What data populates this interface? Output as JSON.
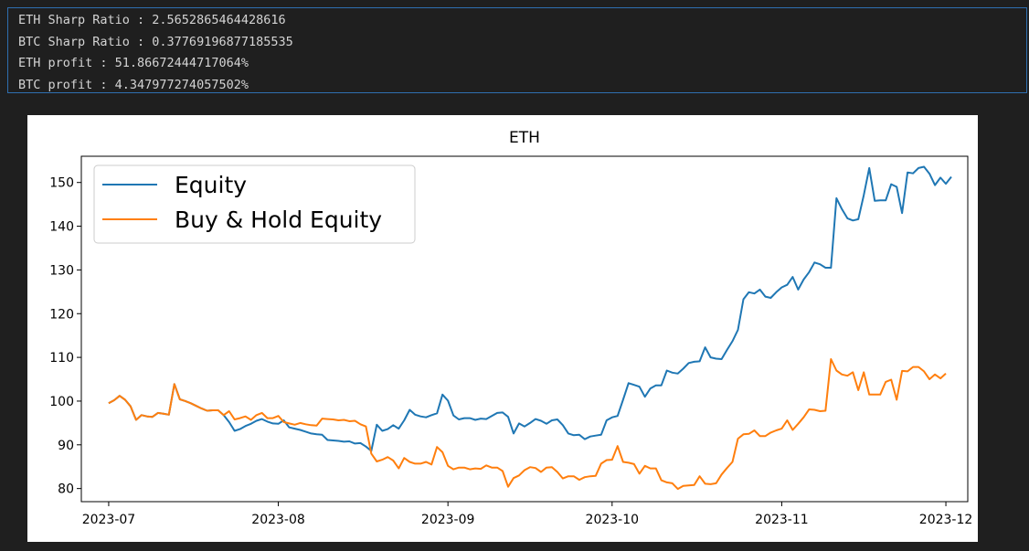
{
  "output_lines": [
    "ETH Sharp Ratio : 2.5652865464428616",
    "BTC Sharp Ratio : 0.37769196877185535",
    "ETH profit : 51.86672444717064%",
    "BTC profit : 4.347977274057502%"
  ],
  "colors": {
    "equity": "#1f77b4",
    "buy_hold": "#ff7f0e",
    "panel_border": "#2f6fb0",
    "background": "#1f1f1f"
  },
  "chart_data": {
    "type": "line",
    "title": "ETH",
    "xlabel": "",
    "ylabel": "",
    "x_start": "2023-07-01",
    "x_step_days": 1,
    "xlim": [
      "2023-06-26",
      "2023-12-05"
    ],
    "ylim": [
      77,
      156
    ],
    "xticks": [
      "2023-07",
      "2023-08",
      "2023-09",
      "2023-10",
      "2023-11",
      "2023-12"
    ],
    "xtick_dates": [
      "2023-07-01",
      "2023-08-01",
      "2023-09-01",
      "2023-10-01",
      "2023-11-01",
      "2023-12-01"
    ],
    "yticks": [
      80,
      90,
      100,
      110,
      120,
      130,
      140,
      150
    ],
    "grid": false,
    "legend_position": "top-left",
    "series": [
      {
        "name": "Equity",
        "color": "#1f77b4",
        "values": [
          99.5,
          100.2,
          101.2,
          100.3,
          98.8,
          95.7,
          96.8,
          96.5,
          96.4,
          97.3,
          97.1,
          96.9,
          103.9,
          100.4,
          100.0,
          99.5,
          98.9,
          98.3,
          97.8,
          97.9,
          97.9,
          96.8,
          95.2,
          93.2,
          93.6,
          94.3,
          94.8,
          95.5,
          95.9,
          95.3,
          94.9,
          94.8,
          95.6,
          94.0,
          93.7,
          93.4,
          93.0,
          92.6,
          92.4,
          92.3,
          91.1,
          91.0,
          90.9,
          90.7,
          90.8,
          90.3,
          90.4,
          89.6,
          88.6,
          94.6,
          93.2,
          93.6,
          94.5,
          93.7,
          95.6,
          98.0,
          96.9,
          96.5,
          96.3,
          96.8,
          97.2,
          101.5,
          100.1,
          96.7,
          95.8,
          96.1,
          96.1,
          95.7,
          96.0,
          95.9,
          96.6,
          97.3,
          97.4,
          96.4,
          92.6,
          94.9,
          94.2,
          95.0,
          95.9,
          95.5,
          94.8,
          95.6,
          95.8,
          94.5,
          92.6,
          92.2,
          92.3,
          91.3,
          91.9,
          92.1,
          92.3,
          95.6,
          96.3,
          96.6,
          100.3,
          104.1,
          103.7,
          103.3,
          101.0,
          102.9,
          103.6,
          103.6,
          107.0,
          106.5,
          106.3,
          107.4,
          108.7,
          109.0,
          109.1,
          112.3,
          110.0,
          109.7,
          109.6,
          111.7,
          113.7,
          116.3,
          123.3,
          124.9,
          124.6,
          125.5,
          123.9,
          123.6,
          124.9,
          126.0,
          126.6,
          128.4,
          125.5,
          127.8,
          129.5,
          131.7,
          131.3,
          130.5,
          130.5,
          146.4,
          143.9,
          141.8,
          141.3,
          141.6,
          147.1,
          153.3,
          145.8,
          145.9,
          145.9,
          149.6,
          149.0,
          143.0,
          152.3,
          152.1,
          153.3,
          153.6,
          152.0,
          149.4,
          151.1,
          149.7,
          151.3
        ]
      },
      {
        "name": "Buy & Hold Equity",
        "color": "#ff7f0e",
        "values": [
          99.5,
          100.2,
          101.2,
          100.3,
          98.8,
          95.7,
          96.8,
          96.5,
          96.4,
          97.3,
          97.1,
          96.9,
          103.9,
          100.4,
          100.0,
          99.5,
          98.9,
          98.3,
          97.8,
          97.9,
          97.9,
          96.8,
          97.7,
          95.8,
          96.1,
          96.5,
          95.7,
          96.8,
          97.3,
          96.1,
          96.1,
          96.6,
          95.2,
          94.9,
          94.6,
          95.0,
          94.7,
          94.5,
          94.4,
          96.0,
          95.9,
          95.8,
          95.6,
          95.7,
          95.4,
          95.5,
          94.7,
          94.2,
          88.0,
          86.2,
          86.6,
          87.2,
          86.4,
          84.6,
          87.0,
          86.1,
          85.7,
          85.7,
          86.1,
          85.5,
          89.5,
          88.3,
          85.2,
          84.4,
          84.8,
          84.8,
          84.4,
          84.6,
          84.5,
          85.3,
          84.8,
          84.8,
          84.0,
          80.4,
          82.4,
          83.0,
          84.2,
          84.9,
          84.7,
          83.8,
          84.8,
          84.9,
          83.8,
          82.3,
          82.8,
          82.8,
          82.0,
          82.6,
          82.8,
          82.9,
          85.7,
          86.5,
          86.6,
          89.7,
          86.1,
          85.9,
          85.6,
          83.4,
          85.2,
          84.6,
          84.6,
          81.9,
          81.4,
          81.2,
          79.9,
          80.6,
          80.7,
          80.8,
          82.8,
          81.1,
          81.0,
          81.2,
          83.2,
          84.7,
          86.1,
          91.4,
          92.4,
          92.5,
          93.3,
          92.0,
          92.0,
          92.8,
          93.3,
          93.7,
          95.6,
          93.4,
          94.8,
          96.3,
          98.1,
          98.0,
          97.7,
          97.8,
          109.6,
          107.0,
          106.1,
          105.8,
          106.6,
          102.5,
          106.6,
          101.5,
          101.5,
          101.5,
          104.4,
          104.9,
          100.3,
          106.9,
          106.8,
          107.8,
          107.8,
          106.8,
          105.0,
          106.1,
          105.2,
          106.3
        ]
      }
    ]
  }
}
